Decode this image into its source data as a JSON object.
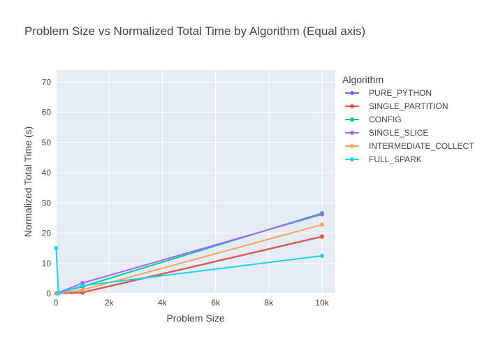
{
  "chart_data": {
    "type": "line",
    "title": "Problem Size vs Normalized Total Time by Algorithm (Equal axis)",
    "xlabel": "Problem Size",
    "ylabel": "Normalized Total Time (s)",
    "xlim": [
      0,
      10500
    ],
    "ylim": [
      0,
      74
    ],
    "x_ticks": [
      0,
      2000,
      4000,
      6000,
      8000,
      10000
    ],
    "x_tick_labels": [
      "0",
      "2k",
      "4k",
      "6k",
      "8k",
      "10k"
    ],
    "y_ticks": [
      0,
      10,
      20,
      30,
      40,
      50,
      60,
      70
    ],
    "y_tick_labels": [
      "0",
      "10",
      "20",
      "30",
      "40",
      "50",
      "60",
      "70"
    ],
    "grid": true,
    "legend": {
      "title": "Algorithm",
      "placement": "right"
    },
    "series": [
      {
        "name": "PURE_PYTHON",
        "color": "#636efa",
        "x": [
          10,
          100,
          1000,
          10000
        ],
        "y": [
          0.1,
          0.1,
          0.3,
          18.8
        ]
      },
      {
        "name": "SINGLE_PARTITION",
        "color": "#ef553b",
        "x": [
          10,
          100,
          1000,
          10000
        ],
        "y": [
          0.1,
          0.1,
          0.4,
          18.9
        ]
      },
      {
        "name": "CONFIG",
        "color": "#00cc96",
        "x": [
          10,
          100,
          1000,
          10000
        ],
        "y": [
          0.1,
          0.2,
          2.3,
          26.6
        ]
      },
      {
        "name": "SINGLE_SLICE",
        "color": "#ab63fa",
        "x": [
          10,
          100,
          1000,
          10000
        ],
        "y": [
          0.1,
          0.3,
          3.5,
          26.2
        ]
      },
      {
        "name": "INTERMEDIATE_COLLECT",
        "color": "#ffa15a",
        "x": [
          10,
          100,
          1000,
          10000
        ],
        "y": [
          0.1,
          0.1,
          1.2,
          22.8
        ]
      },
      {
        "name": "FULL_SPARK",
        "color": "#19d3f3",
        "x": [
          10,
          100,
          1000,
          10000
        ],
        "y": [
          15.0,
          0.1,
          2.6,
          12.5
        ]
      }
    ]
  }
}
